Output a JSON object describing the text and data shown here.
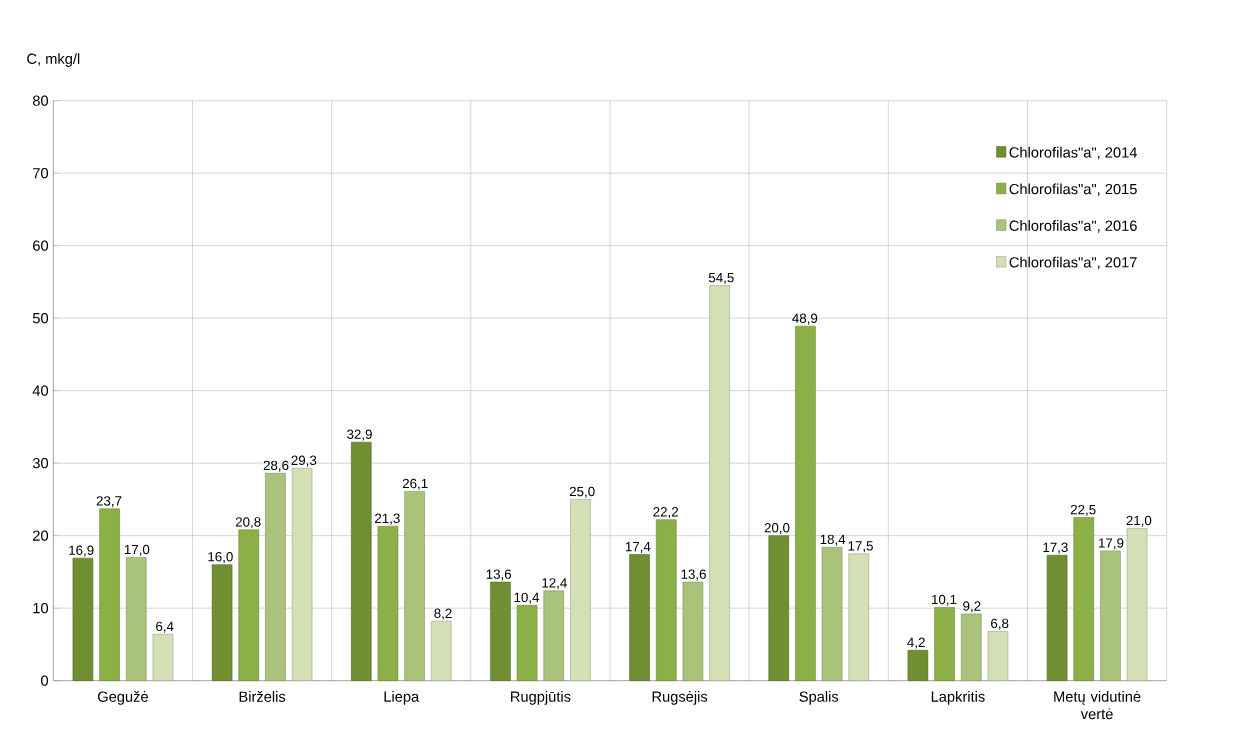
{
  "chart_data": {
    "type": "bar",
    "ylabel": "C, mkg/l",
    "categories": [
      "Gegužė",
      "Birželis",
      "Liepa",
      "Rugpjūtis",
      "Rugsėjis",
      "Spalis",
      "Lapkritis",
      "Metų vidutinė vertė"
    ],
    "series": [
      {
        "name": "Chlorofilas\"a\", 2014",
        "color": "#6f8f32",
        "values": [
          16.9,
          16.0,
          32.9,
          13.6,
          17.4,
          20.0,
          4.2,
          17.3
        ],
        "value_labels": [
          "16,9",
          "16,0",
          "32,9",
          "13,6",
          "17,4",
          "20,0",
          "4,2",
          "17,3"
        ]
      },
      {
        "name": "Chlorofilas\"a\", 2015",
        "color": "#8cb048",
        "values": [
          23.7,
          20.8,
          21.3,
          10.4,
          22.2,
          48.9,
          10.1,
          22.5
        ],
        "value_labels": [
          "23,7",
          "20,8",
          "21,3",
          "10,4",
          "22,2",
          "48,9",
          "10,1",
          "22,5"
        ]
      },
      {
        "name": "Chlorofilas\"a\", 2016",
        "color": "#a9c47a",
        "values": [
          17.0,
          28.6,
          26.1,
          12.4,
          13.6,
          18.4,
          9.2,
          17.9
        ],
        "value_labels": [
          "17,0",
          "28,6",
          "26,1",
          "12,4",
          "13,6",
          "18,4",
          "9,2",
          "17,9"
        ]
      },
      {
        "name": "Chlorofilas\"a\", 2017",
        "color": "#d3dfb5",
        "values": [
          6.4,
          29.3,
          8.2,
          25.0,
          54.5,
          17.5,
          6.8,
          21.0
        ],
        "value_labels": [
          "6,4",
          "29,3",
          "8,2",
          "25,0",
          "54,5",
          "17,5",
          "6,8",
          "21,0"
        ]
      }
    ],
    "ylim": [
      0,
      80
    ],
    "yticks": [
      0,
      10,
      20,
      30,
      40,
      50,
      60,
      70,
      80
    ],
    "grid": true,
    "legend": "top right"
  }
}
